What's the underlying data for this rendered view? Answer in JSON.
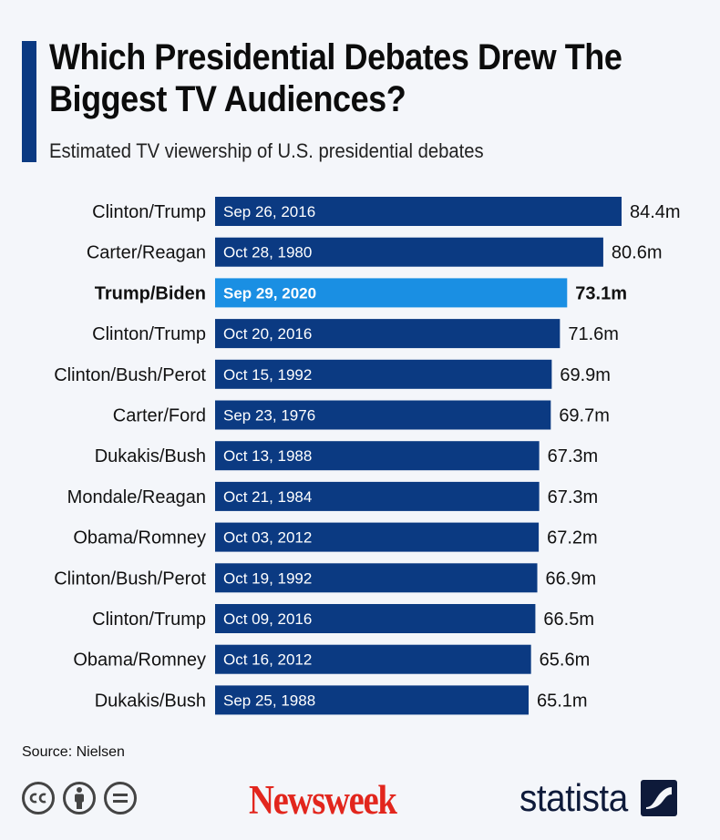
{
  "header": {
    "title": "Which Presidential Debates Drew The Biggest TV Audiences?",
    "subtitle": "Estimated TV viewership of U.S. presidential debates"
  },
  "footer": {
    "source": "Source: Nielsen",
    "newsweek_logo": "Newsweek",
    "statista_logo": "statista"
  },
  "colors": {
    "bar": "#0b3a82",
    "highlight_bar": "#1a8fe3",
    "accent": "#0b3a82",
    "newsweek_red": "#e2261d"
  },
  "icons": [
    "cc-icon",
    "attribution-icon",
    "no-derivatives-icon"
  ],
  "chart_data": {
    "type": "bar",
    "orientation": "horizontal",
    "title": "Which Presidential Debates Drew The Biggest TV Audiences?",
    "subtitle": "Estimated TV viewership of U.S. presidential debates",
    "unit": "m",
    "categories": [
      "Clinton/Trump",
      "Carter/Reagan",
      "Trump/Biden",
      "Clinton/Trump",
      "Clinton/Bush/Perot",
      "Carter/Ford",
      "Dukakis/Bush",
      "Mondale/Reagan",
      "Obama/Romney",
      "Clinton/Bush/Perot",
      "Clinton/Trump",
      "Obama/Romney",
      "Dukakis/Bush"
    ],
    "dates": [
      "Sep 26, 2016",
      "Oct 28, 1980",
      "Sep 29, 2020",
      "Oct 20, 2016",
      "Oct 15, 1992",
      "Sep 23, 1976",
      "Oct 13, 1988",
      "Oct 21, 1984",
      "Oct 03, 2012",
      "Oct 19, 1992",
      "Oct 09, 2016",
      "Oct 16, 2012",
      "Sep 25, 1988"
    ],
    "values": [
      84.4,
      80.6,
      73.1,
      71.6,
      69.9,
      69.7,
      67.3,
      67.3,
      67.2,
      66.9,
      66.5,
      65.6,
      65.1
    ],
    "value_labels": [
      "84.4m",
      "80.6m",
      "73.1m",
      "71.6m",
      "69.9m",
      "69.7m",
      "67.3m",
      "67.3m",
      "67.2m",
      "66.9m",
      "66.5m",
      "65.6m",
      "65.1m"
    ],
    "highlight_index": 2,
    "xlim": [
      0,
      84.4
    ],
    "grid": false,
    "legend": "none"
  }
}
